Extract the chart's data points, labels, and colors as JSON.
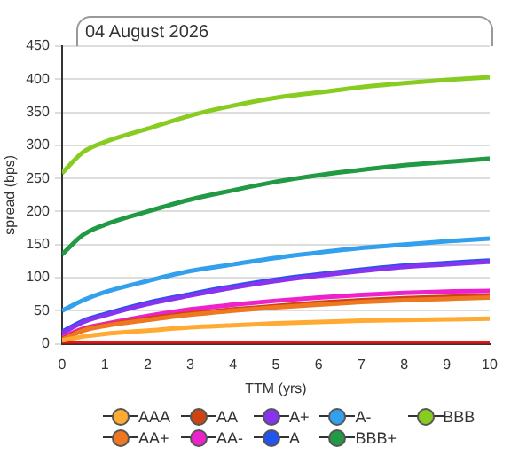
{
  "chart_data": {
    "type": "line",
    "title": "04 August 2026",
    "xlabel": "TTM (yrs)",
    "ylabel": "spread (bps)",
    "x": [
      0,
      0.5,
      1,
      2,
      3,
      4,
      5,
      6,
      7,
      8,
      9,
      10
    ],
    "series": [
      {
        "name": "AAA",
        "color": "#ffaa33",
        "values": [
          5,
          11,
          15,
          20,
          25,
          28,
          31,
          33,
          35,
          36,
          37,
          38
        ]
      },
      {
        "name": "AA+",
        "color": "#ee7722",
        "values": [
          6,
          20,
          27,
          36,
          44,
          50,
          55,
          59,
          63,
          66,
          68,
          70
        ]
      },
      {
        "name": "AA",
        "color": "#cc4411",
        "values": [
          7,
          21,
          28,
          38,
          46,
          52,
          57,
          62,
          66,
          69,
          71,
          73
        ]
      },
      {
        "name": "AA-",
        "color": "#ee22cc",
        "values": [
          10,
          23,
          30,
          42,
          52,
          59,
          65,
          70,
          74,
          77,
          79,
          80
        ]
      },
      {
        "name": "A+",
        "color": "#8833ee",
        "values": [
          16,
          33,
          43,
          60,
          73,
          85,
          95,
          103,
          110,
          116,
          120,
          124
        ]
      },
      {
        "name": "A",
        "color": "#2255ee",
        "values": [
          18,
          35,
          45,
          62,
          75,
          87,
          97,
          105,
          112,
          118,
          122,
          126
        ]
      },
      {
        "name": "A-",
        "color": "#33a0ee",
        "values": [
          50,
          66,
          78,
          95,
          110,
          120,
          130,
          138,
          145,
          150,
          155,
          159
        ]
      },
      {
        "name": "BBB+",
        "color": "#229944",
        "values": [
          135,
          165,
          180,
          200,
          218,
          232,
          245,
          255,
          263,
          270,
          275,
          280
        ]
      },
      {
        "name": "BBB",
        "color": "#88cc22",
        "values": [
          258,
          290,
          305,
          325,
          345,
          360,
          372,
          380,
          388,
          394,
          399,
          403
        ]
      },
      {
        "color": "#ee1111",
        "values": [
          0,
          0,
          0,
          0,
          0,
          0,
          0,
          0,
          0,
          0,
          0,
          0
        ]
      }
    ],
    "xlim": [
      0,
      10
    ],
    "xticks": [
      0,
      1,
      2,
      3,
      4,
      5,
      6,
      7,
      8,
      9,
      10
    ],
    "ylim": [
      0,
      450
    ],
    "yticks": [
      0,
      50,
      100,
      150,
      200,
      250,
      300,
      350,
      400,
      450
    ],
    "grid": "y",
    "legend": "bottom",
    "marker": "none",
    "line_style": "solid"
  }
}
